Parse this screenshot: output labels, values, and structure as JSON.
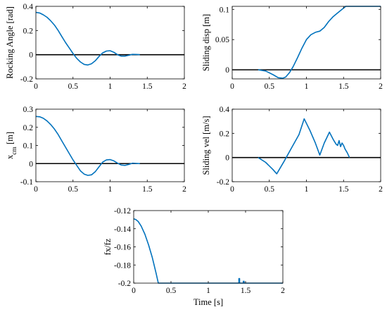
{
  "style": {
    "line_color": "#0072BD",
    "axis_color": "#000000",
    "background": "#ffffff"
  },
  "chart_data": [
    {
      "type": "line",
      "ylabel": "Rocking Angle [rad]",
      "xlabel": "",
      "xlim": [
        0,
        2
      ],
      "ylim": [
        -0.2,
        0.4
      ],
      "xticks": [
        0,
        0.5,
        1,
        1.5,
        2
      ],
      "yticks": [
        -0.2,
        0,
        0.2,
        0.4
      ],
      "zero_line": true,
      "series": [
        {
          "x": [
            0,
            0.05,
            0.1,
            0.15,
            0.2,
            0.25,
            0.3,
            0.35,
            0.4,
            0.45,
            0.5,
            0.55,
            0.6,
            0.65,
            0.7,
            0.75,
            0.8,
            0.85,
            0.9,
            0.95,
            1.0,
            1.05,
            1.1,
            1.15,
            1.2,
            1.25,
            1.3,
            1.35,
            1.4
          ],
          "y": [
            0.35,
            0.345,
            0.33,
            0.31,
            0.28,
            0.245,
            0.2,
            0.15,
            0.1,
            0.055,
            0.01,
            -0.03,
            -0.06,
            -0.08,
            -0.085,
            -0.075,
            -0.05,
            -0.015,
            0.015,
            0.03,
            0.033,
            0.02,
            0.0,
            -0.012,
            -0.012,
            -0.005,
            0.003,
            0.002,
            0.0
          ]
        }
      ]
    },
    {
      "type": "line",
      "ylabel": "Sliding disp [m]",
      "xlabel": "",
      "xlim": [
        0,
        2
      ],
      "ylim": [
        -0.015,
        0.105
      ],
      "xticks": [
        0,
        0.5,
        1,
        1.5,
        2
      ],
      "yticks": [
        0,
        0.05,
        0.1
      ],
      "zero_line": true,
      "series": [
        {
          "x": [
            0.35,
            0.45,
            0.55,
            0.62,
            0.68,
            0.72,
            0.77,
            0.82,
            0.88,
            0.94,
            1.0,
            1.06,
            1.12,
            1.18,
            1.24,
            1.3,
            1.36,
            1.42,
            1.48,
            1.53,
            1.6,
            1.8,
            2.0
          ],
          "y": [
            0,
            -0.002,
            -0.008,
            -0.013,
            -0.014,
            -0.012,
            -0.005,
            0.005,
            0.02,
            0.036,
            0.05,
            0.058,
            0.062,
            0.064,
            0.07,
            0.08,
            0.088,
            0.094,
            0.1,
            0.105,
            0.105,
            0.105,
            0.105
          ]
        }
      ]
    },
    {
      "type": "line",
      "ylabel": "x_cm [m]",
      "xlabel": "",
      "xlim": [
        0,
        2
      ],
      "ylim": [
        -0.1,
        0.3
      ],
      "xticks": [
        0,
        0.5,
        1,
        1.5,
        2
      ],
      "yticks": [
        -0.1,
        0,
        0.1,
        0.2,
        0.3
      ],
      "zero_line": true,
      "series": [
        {
          "x": [
            0,
            0.05,
            0.1,
            0.15,
            0.2,
            0.25,
            0.3,
            0.35,
            0.4,
            0.45,
            0.5,
            0.55,
            0.6,
            0.65,
            0.7,
            0.75,
            0.8,
            0.85,
            0.9,
            0.95,
            1.0,
            1.05,
            1.1,
            1.15,
            1.2,
            1.25,
            1.3,
            1.35,
            1.4
          ],
          "y": [
            0.26,
            0.258,
            0.25,
            0.235,
            0.215,
            0.19,
            0.16,
            0.125,
            0.09,
            0.055,
            0.02,
            -0.01,
            -0.04,
            -0.058,
            -0.065,
            -0.062,
            -0.045,
            -0.018,
            0.008,
            0.02,
            0.022,
            0.015,
            0.002,
            -0.008,
            -0.01,
            -0.005,
            0.002,
            0.001,
            0.0
          ]
        }
      ]
    },
    {
      "type": "line",
      "ylabel": "Sliding vel [m/s]",
      "xlabel": "",
      "xlim": [
        0,
        2
      ],
      "ylim": [
        -0.2,
        0.4
      ],
      "xticks": [
        0,
        0.5,
        1,
        1.5,
        2
      ],
      "yticks": [
        -0.2,
        0,
        0.2,
        0.4
      ],
      "zero_line": true,
      "series": [
        {
          "x": [
            0.35,
            0.45,
            0.55,
            0.6,
            0.7,
            0.8,
            0.9,
            0.97,
            1.05,
            1.12,
            1.18,
            1.24,
            1.31,
            1.36,
            1.4,
            1.42,
            1.44,
            1.46,
            1.48,
            1.5,
            1.52,
            1.55,
            1.58
          ],
          "y": [
            0,
            -0.04,
            -0.1,
            -0.135,
            -0.03,
            0.08,
            0.19,
            0.32,
            0.22,
            0.12,
            0.02,
            0.12,
            0.21,
            0.15,
            0.11,
            0.1,
            0.14,
            0.09,
            0.12,
            0.1,
            0.07,
            0.04,
            0.0
          ]
        }
      ]
    },
    {
      "type": "line",
      "ylabel": "fx/fz",
      "xlabel": "Time [s]",
      "xlim": [
        0,
        2
      ],
      "ylim": [
        -0.2,
        -0.12
      ],
      "xticks": [
        0,
        0.5,
        1,
        1.5,
        2
      ],
      "yticks": [
        -0.2,
        -0.18,
        -0.16,
        -0.14,
        -0.12
      ],
      "zero_line": false,
      "series": [
        {
          "x": [
            0,
            0.03,
            0.06,
            0.1,
            0.15,
            0.2,
            0.25,
            0.3,
            0.33,
            0.5,
            1.0,
            1.41,
            1.41,
            1.42,
            1.42,
            1.47,
            1.47,
            1.48,
            1.48,
            2.0
          ],
          "y": [
            -0.129,
            -0.13,
            -0.132,
            -0.137,
            -0.146,
            -0.158,
            -0.172,
            -0.189,
            -0.2,
            -0.2,
            -0.2,
            -0.2,
            -0.195,
            -0.195,
            -0.2,
            -0.2,
            -0.198,
            -0.198,
            -0.2,
            -0.2
          ]
        }
      ]
    }
  ]
}
